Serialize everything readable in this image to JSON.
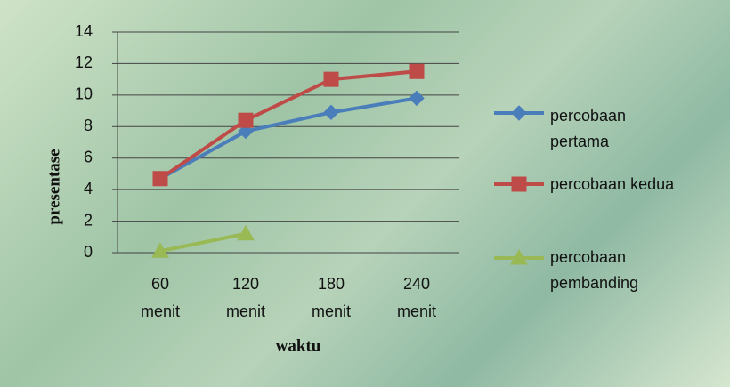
{
  "chart_data": {
    "type": "line",
    "categories": [
      "60 menit",
      "120 menit",
      "180 menit",
      "240 menit"
    ],
    "series": [
      {
        "name": "percobaan pertama",
        "color": "#4a7ebb",
        "marker": "diamond",
        "values": [
          4.7,
          7.7,
          8.9,
          9.8
        ]
      },
      {
        "name": "percobaan kedua",
        "color": "#be4b48",
        "marker": "square",
        "values": [
          4.7,
          8.4,
          11.0,
          11.5
        ]
      },
      {
        "name": "percobaan pembanding",
        "color": "#98b954",
        "marker": "triangle",
        "values": [
          0.1,
          1.2,
          null,
          null
        ]
      }
    ],
    "xlabel": "waktu",
    "ylabel": "presentase",
    "ylim": [
      0,
      14
    ],
    "yticks": [
      0,
      2,
      4,
      6,
      8,
      10,
      12,
      14
    ],
    "grid": true,
    "legend": "right"
  }
}
